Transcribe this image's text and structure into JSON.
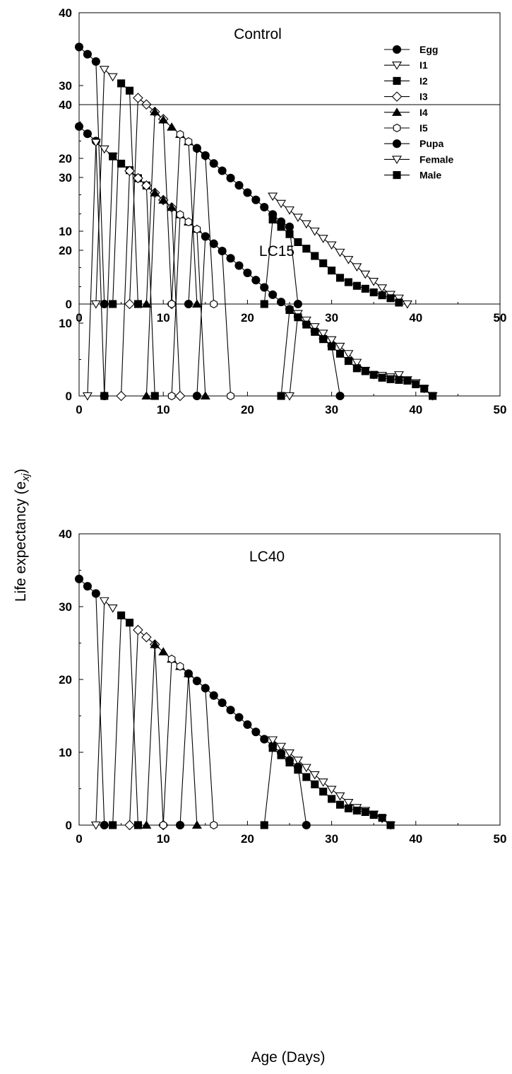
{
  "xlabel": "Age (Days)",
  "ylabel": "Life expectancy (e",
  "ylabel_sub": "xj",
  "ylabel_close": ")",
  "legend": [
    {
      "name": "Egg",
      "marker": "circle",
      "fill": "black"
    },
    {
      "name": "I1",
      "marker": "triangle-down",
      "fill": "white"
    },
    {
      "name": "I2",
      "marker": "square",
      "fill": "black"
    },
    {
      "name": "I3",
      "marker": "diamond",
      "fill": "white"
    },
    {
      "name": "I4",
      "marker": "triangle-up",
      "fill": "black"
    },
    {
      "name": "I5",
      "marker": "hexagon",
      "fill": "white"
    },
    {
      "name": "Pupa",
      "marker": "circle",
      "fill": "black"
    },
    {
      "name": "Female",
      "marker": "triangle-down",
      "fill": "white"
    },
    {
      "name": "Male",
      "marker": "square",
      "fill": "black"
    }
  ],
  "chart_data": [
    {
      "type": "line",
      "title": "Control",
      "xlim": [
        0,
        50
      ],
      "ylim": [
        0,
        40
      ],
      "xticks": [
        0,
        10,
        20,
        30,
        40,
        50
      ],
      "yticks": [
        0,
        10,
        20,
        30,
        40
      ],
      "series": [
        {
          "name": "Egg",
          "x": [
            0,
            1,
            2,
            3
          ],
          "y": [
            35.3,
            34.3,
            33.3,
            0
          ]
        },
        {
          "name": "I1",
          "x": [
            2,
            3,
            4
          ],
          "y": [
            0,
            32.2,
            31.2
          ]
        },
        {
          "name": "I2",
          "x": [
            4,
            5,
            6,
            7
          ],
          "y": [
            0,
            30.3,
            29.3,
            0
          ]
        },
        {
          "name": "I3",
          "x": [
            6,
            7,
            8,
            9,
            10,
            11
          ],
          "y": [
            0,
            28.3,
            27.4,
            26.4,
            25.4,
            0
          ]
        },
        {
          "name": "I4",
          "x": [
            8,
            9,
            10,
            11,
            12,
            13,
            14
          ],
          "y": [
            0,
            26.4,
            25.3,
            24.3,
            23.3,
            22.3,
            0
          ]
        },
        {
          "name": "I5",
          "x": [
            11,
            12,
            13,
            14,
            15,
            16
          ],
          "y": [
            0,
            23.3,
            22.3,
            21.3,
            20.3,
            0
          ]
        },
        {
          "name": "Pupa",
          "x": [
            13,
            14,
            15,
            16,
            17,
            18,
            19,
            20,
            21,
            22,
            23,
            24,
            25,
            26
          ],
          "y": [
            0,
            21.4,
            20.4,
            19.3,
            18.3,
            17.3,
            16.3,
            15.3,
            14.3,
            13.3,
            12.3,
            11.3,
            10.6,
            0
          ]
        },
        {
          "name": "Female",
          "x": [
            23,
            24,
            25,
            26,
            27,
            28,
            29,
            30,
            31,
            32,
            33,
            34,
            35,
            36,
            37,
            38,
            39
          ],
          "y": [
            14.8,
            13.8,
            12.9,
            11.9,
            11.0,
            10.0,
            9.0,
            8.1,
            7.1,
            6.1,
            5.1,
            4.1,
            3.1,
            2.2,
            1.3,
            0.8,
            0
          ]
        },
        {
          "name": "Male",
          "x": [
            22,
            23,
            24,
            25,
            26,
            27,
            28,
            29,
            30,
            31,
            32,
            33,
            34,
            35,
            36,
            37,
            38
          ],
          "y": [
            0,
            11.6,
            10.6,
            9.6,
            8.5,
            7.6,
            6.6,
            5.6,
            4.6,
            3.6,
            3.0,
            2.5,
            2.1,
            1.6,
            1.2,
            0.8,
            0.2
          ]
        }
      ]
    },
    {
      "type": "line",
      "title": "LC15",
      "xlim": [
        0,
        50
      ],
      "ylim": [
        0,
        40
      ],
      "xticks": [
        0,
        10,
        20,
        30,
        40,
        50
      ],
      "yticks": [
        0,
        10,
        20,
        30,
        40
      ],
      "series": [
        {
          "name": "Egg",
          "x": [
            0,
            1,
            2,
            3
          ],
          "y": [
            37.0,
            36.0,
            35.0,
            0
          ]
        },
        {
          "name": "I1",
          "x": [
            1,
            2,
            3,
            4
          ],
          "y": [
            0,
            34.8,
            33.9,
            32.9
          ]
        },
        {
          "name": "I2",
          "x": [
            3,
            4,
            5,
            6,
            7,
            8,
            9
          ],
          "y": [
            0,
            32.9,
            31.9,
            31.0,
            29.9,
            28.9,
            0
          ]
        },
        {
          "name": "I3",
          "x": [
            5,
            6,
            7,
            8,
            9,
            10,
            11,
            12
          ],
          "y": [
            0,
            30.9,
            29.9,
            28.9,
            27.9,
            26.9,
            25.9,
            0
          ]
        },
        {
          "name": "I4",
          "x": [
            8,
            9,
            10,
            11,
            12,
            13,
            14,
            15
          ],
          "y": [
            0,
            27.9,
            26.9,
            25.9,
            24.9,
            23.9,
            22.9,
            0
          ]
        },
        {
          "name": "I5",
          "x": [
            11,
            12,
            13,
            14,
            15,
            16,
            17,
            18
          ],
          "y": [
            0,
            24.9,
            23.9,
            22.9,
            21.9,
            20.9,
            19.9,
            0
          ]
        },
        {
          "name": "Pupa",
          "x": [
            14,
            15,
            16,
            17,
            18,
            19,
            20,
            21,
            22,
            23,
            24,
            25,
            26,
            27,
            28,
            29,
            30,
            31
          ],
          "y": [
            0,
            21.9,
            20.9,
            19.9,
            18.9,
            17.9,
            16.9,
            15.9,
            14.9,
            13.9,
            12.9,
            11.9,
            10.9,
            9.9,
            8.9,
            7.9,
            6.9,
            0
          ]
        },
        {
          "name": "Female",
          "x": [
            25,
            26,
            27,
            28,
            29,
            30,
            31,
            32,
            33,
            34,
            35,
            36,
            37,
            38,
            39,
            40,
            41,
            42
          ],
          "y": [
            0,
            11.3,
            10.4,
            9.5,
            8.6,
            7.7,
            6.8,
            5.8,
            4.6,
            3.5,
            2.9,
            2.8,
            2.6,
            2.9,
            2.2,
            1.8,
            1.0,
            0
          ]
        },
        {
          "name": "Male",
          "x": [
            24,
            25,
            26,
            27,
            28,
            29,
            30,
            31,
            32,
            33,
            34,
            35,
            36,
            37,
            38,
            39,
            40,
            41,
            42
          ],
          "y": [
            0,
            11.8,
            10.8,
            9.8,
            8.8,
            7.8,
            6.8,
            5.8,
            4.8,
            3.8,
            3.4,
            2.9,
            2.5,
            2.3,
            2.2,
            2.1,
            1.6,
            1.0,
            0
          ]
        }
      ]
    },
    {
      "type": "line",
      "title": "LC40",
      "xlim": [
        0,
        50
      ],
      "ylim": [
        0,
        40
      ],
      "xticks": [
        0,
        10,
        20,
        30,
        40,
        50
      ],
      "yticks": [
        0,
        10,
        20,
        30,
        40
      ],
      "series": [
        {
          "name": "Egg",
          "x": [
            0,
            1,
            2,
            3
          ],
          "y": [
            33.8,
            32.8,
            31.8,
            0
          ]
        },
        {
          "name": "I1",
          "x": [
            2,
            3,
            4
          ],
          "y": [
            0,
            30.8,
            29.8
          ]
        },
        {
          "name": "I2",
          "x": [
            4,
            5,
            6,
            7
          ],
          "y": [
            0,
            28.8,
            27.8,
            0
          ]
        },
        {
          "name": "I3",
          "x": [
            6,
            7,
            8,
            9,
            10
          ],
          "y": [
            0,
            26.8,
            25.8,
            24.8,
            0
          ]
        },
        {
          "name": "I4",
          "x": [
            8,
            9,
            10,
            11,
            12,
            13,
            14
          ],
          "y": [
            0,
            24.8,
            23.8,
            22.8,
            21.8,
            20.8,
            0
          ]
        },
        {
          "name": "I5",
          "x": [
            10,
            11,
            12,
            13,
            14,
            15,
            16
          ],
          "y": [
            0,
            22.8,
            21.8,
            20.8,
            19.8,
            18.8,
            0
          ]
        },
        {
          "name": "Pupa",
          "x": [
            12,
            13,
            14,
            15,
            16,
            17,
            18,
            19,
            20,
            21,
            22,
            23,
            24,
            25,
            26,
            27
          ],
          "y": [
            0,
            20.8,
            19.8,
            18.8,
            17.8,
            16.8,
            15.8,
            14.8,
            13.8,
            12.8,
            11.8,
            10.9,
            9.9,
            8.9,
            8.0,
            0
          ]
        },
        {
          "name": "Female",
          "x": [
            23,
            24,
            25,
            26,
            27,
            28,
            29,
            30,
            31,
            32,
            33,
            34,
            35,
            36,
            37
          ],
          "y": [
            11.7,
            10.8,
            9.9,
            8.9,
            7.9,
            6.9,
            5.9,
            4.9,
            4.0,
            3.1,
            2.4,
            2.0,
            1.5,
            0.9,
            0
          ]
        },
        {
          "name": "Male",
          "x": [
            22,
            23,
            24,
            25,
            26,
            27,
            28,
            29,
            30,
            31,
            32,
            33,
            34,
            35,
            36,
            37
          ],
          "y": [
            0,
            10.6,
            9.6,
            8.6,
            7.6,
            6.6,
            5.6,
            4.6,
            3.6,
            2.8,
            2.3,
            2.0,
            1.8,
            1.4,
            1.0,
            0
          ]
        }
      ]
    }
  ]
}
